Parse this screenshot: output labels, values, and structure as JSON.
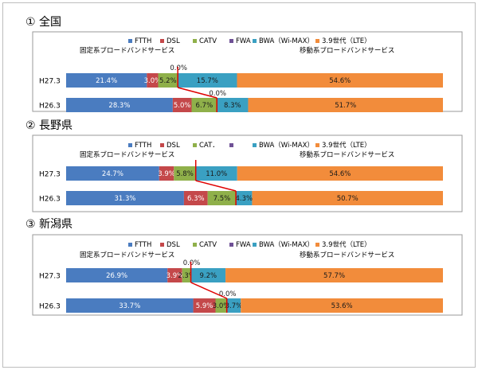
{
  "series_colors": {
    "FTTH": "#4a7cc0",
    "DSL": "#c4484a",
    "CATV": "#8fb04a",
    "FWA": "#6f5196",
    "BWA": "#3aa0c2",
    "LTE": "#f28c3b"
  },
  "group_labels": {
    "fixed": "固定系ブロードバンドサービス",
    "mobile": "移動系ブロードバンドサービス"
  },
  "chart_data": [
    {
      "type": "bar",
      "orientation": "horizontal",
      "stacked": "100%",
      "title": "① 全国",
      "categories": [
        "H27.3",
        "H26.3"
      ],
      "legend": [
        "FTTH",
        "DSL",
        "CATV",
        "FWA",
        "BWA（Wi-MAX）",
        "3.9世代（LTE）"
      ],
      "series": [
        {
          "name": "FTTH",
          "values": [
            21.4,
            28.3
          ]
        },
        {
          "name": "DSL",
          "values": [
            3.0,
            5.0
          ]
        },
        {
          "name": "CATV",
          "values": [
            5.2,
            6.7
          ]
        },
        {
          "name": "FWA",
          "values": [
            0.0,
            0.0
          ]
        },
        {
          "name": "BWA（Wi-MAX）",
          "values": [
            15.7,
            8.3
          ]
        },
        {
          "name": "3.9世代（LTE）",
          "values": [
            54.6,
            51.7
          ]
        }
      ],
      "labels": [
        [
          "21.4%",
          "3.0%",
          "5.2%",
          "0.0%",
          "15.7%",
          "54.6%"
        ],
        [
          "28.3%",
          "5.0%",
          "6.7%",
          "0.0%",
          "8.3%",
          "51.7%"
        ]
      ]
    },
    {
      "type": "bar",
      "orientation": "horizontal",
      "stacked": "100%",
      "title": "② 長野県",
      "categories": [
        "H27.3",
        "H26.3"
      ],
      "legend": [
        "FTTH",
        "DSL",
        "CAT．",
        "",
        "BWA（Wi-MAX）",
        "3.9世代（LTE）"
      ],
      "series": [
        {
          "name": "FTTH",
          "values": [
            24.7,
            31.3
          ]
        },
        {
          "name": "DSL",
          "values": [
            3.9,
            6.3
          ]
        },
        {
          "name": "CAT．",
          "values": [
            5.8,
            7.5
          ]
        },
        {
          "name": "",
          "values": [
            0.0,
            0.0
          ]
        },
        {
          "name": "BWA（Wi-MAX）",
          "values": [
            11.0,
            4.3
          ]
        },
        {
          "name": "3.9世代（LTE）",
          "values": [
            54.6,
            50.7
          ]
        }
      ],
      "labels": [
        [
          "24.7%",
          "3.9%",
          "5.8%",
          "",
          "11.0%",
          "54.6%"
        ],
        [
          "31.3%",
          "6.3%",
          "7.5%",
          "",
          "4.3%",
          "50.7%"
        ]
      ]
    },
    {
      "type": "bar",
      "orientation": "horizontal",
      "stacked": "100%",
      "title": "③ 新潟県",
      "categories": [
        "H27.3",
        "H26.3"
      ],
      "legend": [
        "FTTH",
        "DSL",
        "CATV",
        "FWA",
        "BWA（Wi-MAX）",
        "3.9世代（LTE）"
      ],
      "series": [
        {
          "name": "FTTH",
          "values": [
            26.9,
            33.7
          ]
        },
        {
          "name": "DSL",
          "values": [
            3.9,
            5.9
          ]
        },
        {
          "name": "CATV",
          "values": [
            2.3,
            3.0
          ]
        },
        {
          "name": "FWA",
          "values": [
            0.0,
            0.0
          ]
        },
        {
          "name": "BWA（Wi-MAX）",
          "values": [
            9.2,
            3.7
          ]
        },
        {
          "name": "3.9世代（LTE）",
          "values": [
            57.7,
            53.6
          ]
        }
      ],
      "labels": [
        [
          "26.9%",
          "3.9%",
          "2.3%",
          "0.0%",
          "9.2%",
          "57.7%"
        ],
        [
          "33.7%",
          "5.9%",
          "3.0%",
          "0.0%",
          "3.7%",
          "53.6%"
        ]
      ]
    }
  ]
}
